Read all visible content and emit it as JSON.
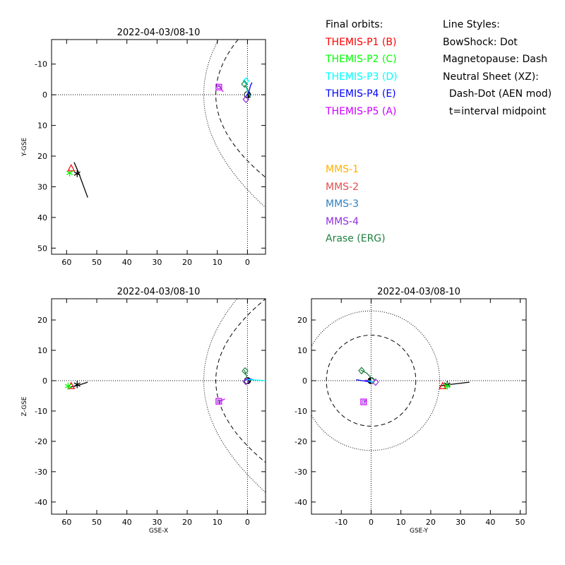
{
  "legend_orbits": {
    "heading": "Final orbits:",
    "items": [
      {
        "label": "THEMIS-P1 (B)",
        "color": "#ff0000"
      },
      {
        "label": "THEMIS-P2 (C)",
        "color": "#00ff00"
      },
      {
        "label": "THEMIS-P3 (D)",
        "color": "#00ffff"
      },
      {
        "label": "THEMIS-P4 (E)",
        "color": "#0000ff"
      },
      {
        "label": "THEMIS-P5 (A)",
        "color": "#cc00ff"
      }
    ]
  },
  "legend_styles": {
    "heading": "Line Styles:",
    "items": [
      "BowShock: Dot",
      "Magnetopause: Dash",
      "Neutral Sheet (XZ):",
      "  Dash-Dot (AEN mod)",
      "  t=interval midpoint"
    ]
  },
  "legend_missions": {
    "items": [
      {
        "label": "MMS-1",
        "color": "#ffb000"
      },
      {
        "label": "MMS-2",
        "color": "#e05050"
      },
      {
        "label": "MMS-3",
        "color": "#3080c0"
      },
      {
        "label": "MMS-4",
        "color": "#9030e0"
      },
      {
        "label": "Arase (ERG)",
        "color": "#208040"
      }
    ]
  },
  "chart_data": [
    {
      "id": "xy",
      "type": "scatter",
      "title": "2022-04-03/08-10",
      "xlabel": "",
      "ylabel": "Y-GSE",
      "xlim": [
        65,
        -6
      ],
      "ylim": [
        -18,
        52
      ],
      "xticks": [
        60,
        50,
        40,
        30,
        20,
        10,
        0
      ],
      "yticks": [
        -10,
        0,
        10,
        20,
        30,
        40,
        50
      ],
      "x_tick_labels": [
        "60",
        "50",
        "40",
        "30",
        "20",
        "10",
        "0"
      ],
      "y_tick_labels": [
        "-10",
        "0",
        "10",
        "20",
        "30",
        "40",
        "50"
      ],
      "boundaries": "parabolic",
      "series": [
        {
          "color": "#000000",
          "x": [
            57.5,
            56,
            54.5,
            53
          ],
          "y": [
            22,
            25.5,
            29.5,
            33.5
          ],
          "marker": "star",
          "mx": 56.5,
          "my": 25.7
        },
        {
          "color": "#ff0000",
          "x": [],
          "y": [],
          "marker": "triangle",
          "mx": 58.5,
          "my": 24
        },
        {
          "color": "#00ff00",
          "x": [],
          "y": [],
          "marker": "star",
          "mx": 59,
          "my": 25.5
        },
        {
          "color": "#cc00ff",
          "x": [
            10,
            9,
            8.5,
            8
          ],
          "y": [
            -3,
            -2.5,
            -1.5,
            -1
          ],
          "marker": "square",
          "mx": 9.5,
          "my": -2.5
        },
        {
          "color": "#00ffff",
          "x": [
            1,
            0.5,
            0,
            -1
          ],
          "y": [
            -5,
            -3,
            -1,
            0.5
          ],
          "marker": "diamond",
          "mx": 0.5,
          "my": -4.5
        },
        {
          "color": "#208040",
          "x": [
            1,
            0,
            -0.5,
            -1
          ],
          "y": [
            -3,
            -2,
            0,
            1
          ],
          "marker": "diamond",
          "mx": 1,
          "my": -3.5
        },
        {
          "color": "#0000ff",
          "x": [
            0.5,
            -0.5,
            -1,
            -1.5
          ],
          "y": [
            0.5,
            -1,
            -3,
            -4
          ],
          "marker": "none",
          "mx": 0,
          "my": 0
        },
        {
          "color": "#9030e0",
          "x": [],
          "y": [],
          "marker": "diamond",
          "mx": 0.5,
          "my": 1.5
        }
      ]
    },
    {
      "id": "xz",
      "type": "scatter",
      "title": "2022-04-03/08-10",
      "xlabel": "GSE-X",
      "ylabel": "Z-GSE",
      "xlim": [
        65,
        -6
      ],
      "ylim": [
        -44,
        27
      ],
      "xticks": [
        60,
        50,
        40,
        30,
        20,
        10,
        0
      ],
      "yticks": [
        20,
        10,
        0,
        -10,
        -20,
        -30,
        -40
      ],
      "x_tick_labels": [
        "60",
        "50",
        "40",
        "30",
        "20",
        "10",
        "0"
      ],
      "y_tick_labels": [
        "20",
        "10",
        "0",
        "-10",
        "-20",
        "-30",
        "-40"
      ],
      "boundaries": "parabolic",
      "series": [
        {
          "color": "#000000",
          "x": [
            59,
            56,
            53
          ],
          "y": [
            -2.2,
            -1.5,
            -0.5
          ],
          "marker": "star",
          "mx": 56.5,
          "my": -1.3
        },
        {
          "color": "#ff0000",
          "x": [],
          "y": [],
          "marker": "triangle",
          "mx": 58.5,
          "my": -1.8
        },
        {
          "color": "#00ff00",
          "x": [],
          "y": [],
          "marker": "star",
          "mx": 59.5,
          "my": -1.8
        },
        {
          "color": "#cc00ff",
          "x": [
            9.5,
            8.5,
            7.5
          ],
          "y": [
            -6.8,
            -6.5,
            -6
          ],
          "marker": "square",
          "mx": 9.5,
          "my": -6.8
        },
        {
          "color": "#208040",
          "x": [
            1,
            0.5,
            0,
            -1
          ],
          "y": [
            3.5,
            2,
            0.5,
            0
          ],
          "marker": "diamond",
          "mx": 0.8,
          "my": 3.2
        },
        {
          "color": "#0000ff",
          "x": [
            1,
            0,
            -1,
            -2
          ],
          "y": [
            0,
            0.5,
            0.5,
            0.3
          ],
          "marker": "none",
          "mx": 0,
          "my": 0
        },
        {
          "color": "#00ffff",
          "x": [
            0.5,
            -1,
            -3,
            -6
          ],
          "y": [
            0.5,
            0.3,
            0.2,
            0
          ],
          "marker": "none",
          "mx": 0,
          "my": 0
        },
        {
          "color": "#9030e0",
          "x": [],
          "y": [],
          "marker": "diamond",
          "mx": 0.5,
          "my": -0.3
        }
      ]
    },
    {
      "id": "yz",
      "type": "scatter",
      "title": "2022-04-03/08-10",
      "xlabel": "GSE-Y",
      "ylabel": "",
      "xlim": [
        -20,
        52
      ],
      "ylim": [
        -44,
        27
      ],
      "xticks": [
        -10,
        0,
        10,
        20,
        30,
        40,
        50
      ],
      "yticks": [
        20,
        10,
        0,
        -10,
        -20,
        -30,
        -40
      ],
      "x_tick_labels": [
        "-10",
        "0",
        "10",
        "20",
        "30",
        "40",
        "50"
      ],
      "y_tick_labels": [
        "20",
        "10",
        "0",
        "-10",
        "-20",
        "-30",
        "-40"
      ],
      "boundaries": "circular",
      "bowshock_radius": 23,
      "magnetopause_radius": 15,
      "series": [
        {
          "color": "#000000",
          "x": [
            23,
            26,
            33
          ],
          "y": [
            -1.8,
            -1.3,
            -0.5
          ],
          "marker": "star",
          "mx": 25.5,
          "my": -1.3
        },
        {
          "color": "#ff0000",
          "x": [],
          "y": [],
          "marker": "triangle",
          "mx": 24,
          "my": -1.8
        },
        {
          "color": "#00ff00",
          "x": [],
          "y": [],
          "marker": "star",
          "mx": 25.5,
          "my": -1.8
        },
        {
          "color": "#cc00ff",
          "x": [
            -2.5,
            -2,
            -1.5
          ],
          "y": [
            -7,
            -6.8,
            -6.3
          ],
          "marker": "square",
          "mx": -2.5,
          "my": -7
        },
        {
          "color": "#208040",
          "x": [
            -3.5,
            -1.5,
            0,
            1.5
          ],
          "y": [
            3.5,
            2.5,
            1,
            0
          ],
          "marker": "diamond",
          "mx": -3.2,
          "my": 3.3
        },
        {
          "color": "#0000ff",
          "x": [
            -5,
            -3,
            -1,
            0.5
          ],
          "y": [
            0.3,
            0,
            -0.3,
            -0.5
          ],
          "marker": "none",
          "mx": 0,
          "my": 0
        },
        {
          "color": "#cc00ff",
          "x": [
            -2,
            -1,
            0.5
          ],
          "y": [
            0.2,
            0,
            -0.3
          ],
          "marker": "none",
          "mx": 0,
          "my": 0
        },
        {
          "color": "#9030e0",
          "x": [],
          "y": [],
          "marker": "diamond",
          "mx": 1.5,
          "my": -0.5
        },
        {
          "color": "#00ffff",
          "x": [
            -1,
            0,
            1
          ],
          "y": [
            0,
            -0.3,
            -0.5
          ],
          "marker": "none",
          "mx": 0,
          "my": 0
        }
      ]
    }
  ]
}
